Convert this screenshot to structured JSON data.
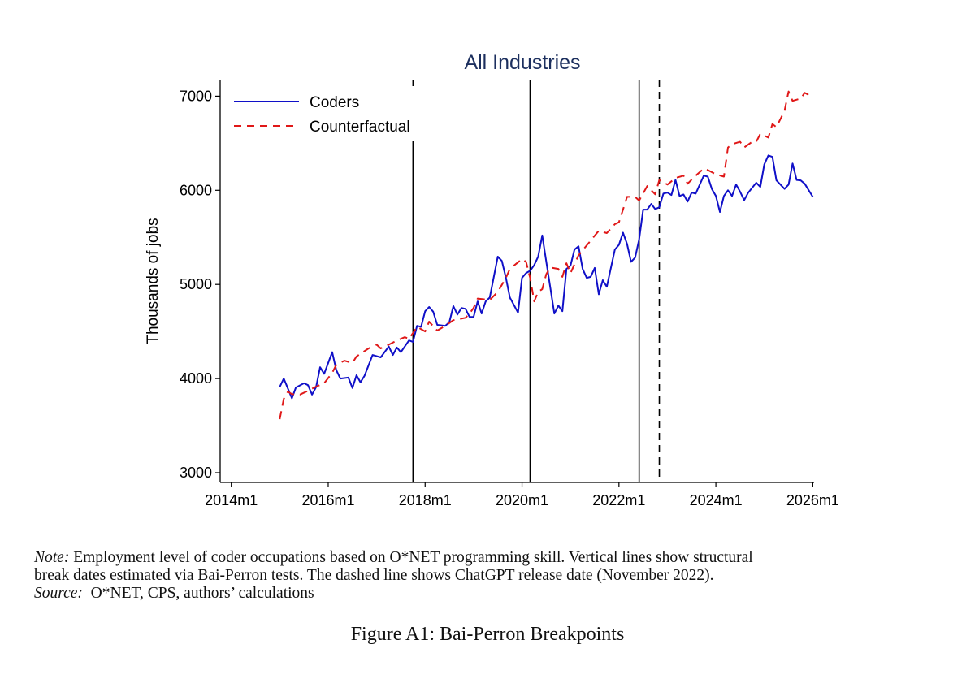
{
  "chart_data": {
    "type": "line",
    "title": "All Industries",
    "xlabel": "",
    "ylabel": "Thousands of jobs",
    "xlim": [
      "2014m1",
      "2026m1"
    ],
    "ylim": [
      3000,
      7000
    ],
    "x_ticks": [
      "2014m1",
      "2016m1",
      "2018m1",
      "2020m1",
      "2022m1",
      "2024m1",
      "2026m1"
    ],
    "y_ticks": [
      3000,
      4000,
      5000,
      6000,
      7000
    ],
    "grid": false,
    "legend_position": "top-left",
    "vertical_lines": [
      {
        "x": "2017m10",
        "style": "solid"
      },
      {
        "x": "2020m3",
        "style": "solid"
      },
      {
        "x": "2022m6",
        "style": "solid"
      },
      {
        "x": "2022m11",
        "style": "dashed"
      }
    ],
    "series": [
      {
        "name": "Coders",
        "color": "#1010c8",
        "style": "solid",
        "points": [
          [
            "2015m1",
            3910
          ],
          [
            "2015m2",
            4000
          ],
          [
            "2015m4",
            3790
          ],
          [
            "2015m5",
            3905
          ],
          [
            "2015m7",
            3950
          ],
          [
            "2015m8",
            3930
          ],
          [
            "2015m9",
            3830
          ],
          [
            "2015m10",
            3910
          ],
          [
            "2015m11",
            4120
          ],
          [
            "2015m12",
            4050
          ],
          [
            "2016m2",
            4280
          ],
          [
            "2016m3",
            4090
          ],
          [
            "2016m4",
            4000
          ],
          [
            "2016m6",
            4010
          ],
          [
            "2016m7",
            3900
          ],
          [
            "2016m8",
            4035
          ],
          [
            "2016m9",
            3960
          ],
          [
            "2016m10",
            4030
          ],
          [
            "2016m12",
            4250
          ],
          [
            "2017m2",
            4225
          ],
          [
            "2017m4",
            4340
          ],
          [
            "2017m5",
            4250
          ],
          [
            "2017m6",
            4330
          ],
          [
            "2017m7",
            4280
          ],
          [
            "2017m9",
            4405
          ],
          [
            "2017m10",
            4390
          ],
          [
            "2017m11",
            4560
          ],
          [
            "2017m12",
            4550
          ],
          [
            "2018m1",
            4715
          ],
          [
            "2018m2",
            4760
          ],
          [
            "2018m3",
            4710
          ],
          [
            "2018m4",
            4570
          ],
          [
            "2018m6",
            4560
          ],
          [
            "2018m7",
            4600
          ],
          [
            "2018m8",
            4770
          ],
          [
            "2018m9",
            4680
          ],
          [
            "2018m10",
            4750
          ],
          [
            "2018m11",
            4740
          ],
          [
            "2018m12",
            4655
          ],
          [
            "2019m1",
            4655
          ],
          [
            "2019m2",
            4820
          ],
          [
            "2019m3",
            4690
          ],
          [
            "2019m4",
            4820
          ],
          [
            "2019m5",
            4860
          ],
          [
            "2019m7",
            5295
          ],
          [
            "2019m8",
            5250
          ],
          [
            "2019m9",
            5070
          ],
          [
            "2019m10",
            4860
          ],
          [
            "2019m12",
            4700
          ],
          [
            "2020m1",
            5070
          ],
          [
            "2020m2",
            5120
          ],
          [
            "2020m3",
            5145
          ],
          [
            "2020m4",
            5205
          ],
          [
            "2020m5",
            5295
          ],
          [
            "2020m6",
            5520
          ],
          [
            "2020m7",
            5240
          ],
          [
            "2020m9",
            4690
          ],
          [
            "2020m10",
            4775
          ],
          [
            "2020m11",
            4715
          ],
          [
            "2020m12",
            5165
          ],
          [
            "2021m1",
            5200
          ],
          [
            "2021m2",
            5370
          ],
          [
            "2021m3",
            5405
          ],
          [
            "2021m4",
            5165
          ],
          [
            "2021m5",
            5070
          ],
          [
            "2021m6",
            5080
          ],
          [
            "2021m7",
            5175
          ],
          [
            "2021m8",
            4895
          ],
          [
            "2021m9",
            5045
          ],
          [
            "2021m10",
            4975
          ],
          [
            "2021m12",
            5370
          ],
          [
            "2022m1",
            5420
          ],
          [
            "2022m2",
            5550
          ],
          [
            "2022m3",
            5430
          ],
          [
            "2022m4",
            5240
          ],
          [
            "2022m5",
            5285
          ],
          [
            "2022m6",
            5480
          ],
          [
            "2022m7",
            5795
          ],
          [
            "2022m8",
            5795
          ],
          [
            "2022m9",
            5855
          ],
          [
            "2022m10",
            5800
          ],
          [
            "2022m11",
            5820
          ],
          [
            "2022m12",
            5965
          ],
          [
            "2023m1",
            5975
          ],
          [
            "2023m2",
            5950
          ],
          [
            "2023m3",
            6110
          ],
          [
            "2023m4",
            5940
          ],
          [
            "2023m5",
            5955
          ],
          [
            "2023m6",
            5880
          ],
          [
            "2023m7",
            5975
          ],
          [
            "2023m8",
            5965
          ],
          [
            "2023m10",
            6155
          ],
          [
            "2023m11",
            6145
          ],
          [
            "2023m12",
            6015
          ],
          [
            "2024m1",
            5940
          ],
          [
            "2024m2",
            5770
          ],
          [
            "2024m3",
            5940
          ],
          [
            "2024m4",
            6000
          ],
          [
            "2024m5",
            5940
          ],
          [
            "2024m6",
            6060
          ],
          [
            "2024m7",
            5985
          ],
          [
            "2024m8",
            5895
          ],
          [
            "2024m9",
            5975
          ],
          [
            "2024m11",
            6080
          ],
          [
            "2024m12",
            6035
          ],
          [
            "2025m1",
            6275
          ],
          [
            "2025m2",
            6370
          ],
          [
            "2025m3",
            6355
          ],
          [
            "2025m4",
            6105
          ],
          [
            "2025m6",
            6015
          ],
          [
            "2025m7",
            6060
          ],
          [
            "2025m8",
            6285
          ],
          [
            "2025m9",
            6110
          ],
          [
            "2025m10",
            6105
          ],
          [
            "2025m11",
            6070
          ],
          [
            "2026m1",
            5930
          ]
        ]
      },
      {
        "name": "Counterfactual",
        "color": "#e01818",
        "style": "dashed",
        "points": [
          [
            "2015m1",
            3569
          ],
          [
            "2015m2",
            3785
          ],
          [
            "2015m3",
            3860
          ],
          [
            "2015m4",
            3835
          ],
          [
            "2015m6",
            3830
          ],
          [
            "2015m8",
            3870
          ],
          [
            "2015m10",
            3915
          ],
          [
            "2015m12",
            3950
          ],
          [
            "2016m2",
            4060
          ],
          [
            "2016m3",
            4145
          ],
          [
            "2016m5",
            4190
          ],
          [
            "2016m7",
            4165
          ],
          [
            "2016m8",
            4235
          ],
          [
            "2016m11",
            4320
          ],
          [
            "2017m1",
            4360
          ],
          [
            "2017m2",
            4320
          ],
          [
            "2017m4",
            4360
          ],
          [
            "2017m6",
            4405
          ],
          [
            "2017m8",
            4440
          ],
          [
            "2017m9",
            4420
          ],
          [
            "2017m11",
            4550
          ],
          [
            "2018m1",
            4500
          ],
          [
            "2018m2",
            4605
          ],
          [
            "2018m4",
            4510
          ],
          [
            "2018m6",
            4560
          ],
          [
            "2018m8",
            4620
          ],
          [
            "2018m11",
            4645
          ],
          [
            "2018m12",
            4690
          ],
          [
            "2019m1",
            4750
          ],
          [
            "2019m2",
            4850
          ],
          [
            "2019m5",
            4835
          ],
          [
            "2019m7",
            4920
          ],
          [
            "2019m9",
            5070
          ],
          [
            "2019m10",
            5165
          ],
          [
            "2020m1",
            5270
          ],
          [
            "2020m2",
            5240
          ],
          [
            "2020m3",
            5070
          ],
          [
            "2020m4",
            4820
          ],
          [
            "2020m5",
            4920
          ],
          [
            "2020m6",
            4950
          ],
          [
            "2020m7",
            5110
          ],
          [
            "2020m8",
            5180
          ],
          [
            "2020m10",
            5165
          ],
          [
            "2020m11",
            5080
          ],
          [
            "2020m12",
            5225
          ],
          [
            "2021m1",
            5120
          ],
          [
            "2021m3",
            5310
          ],
          [
            "2021m6",
            5465
          ],
          [
            "2021m8",
            5570
          ],
          [
            "2021m10",
            5545
          ],
          [
            "2021m12",
            5640
          ],
          [
            "2022m1",
            5660
          ],
          [
            "2022m3",
            5930
          ],
          [
            "2022m5",
            5930
          ],
          [
            "2022m6",
            5890
          ],
          [
            "2022m8",
            6045
          ],
          [
            "2022m10",
            5957
          ],
          [
            "2022m11",
            6110
          ],
          [
            "2023m1",
            6060
          ],
          [
            "2023m3",
            6130
          ],
          [
            "2023m5",
            6155
          ],
          [
            "2023m6",
            6070
          ],
          [
            "2023m8",
            6155
          ],
          [
            "2023m10",
            6230
          ],
          [
            "2023m11",
            6215
          ],
          [
            "2024m1",
            6170
          ],
          [
            "2024m3",
            6145
          ],
          [
            "2024m4",
            6455
          ],
          [
            "2024m5",
            6490
          ],
          [
            "2024m7",
            6515
          ],
          [
            "2024m8",
            6455
          ],
          [
            "2024m10",
            6515
          ],
          [
            "2024m11",
            6515
          ],
          [
            "2024m12",
            6600
          ],
          [
            "2025m2",
            6560
          ],
          [
            "2025m3",
            6705
          ],
          [
            "2025m4",
            6670
          ],
          [
            "2025m6",
            6845
          ],
          [
            "2025m7",
            7050
          ],
          [
            "2025m8",
            6950
          ],
          [
            "2025m10",
            6975
          ],
          [
            "2025m11",
            7035
          ],
          [
            "2026m1",
            6990
          ]
        ]
      }
    ]
  },
  "note": {
    "label": "Note:",
    "line1": "Employment level of coder occupations based on O*NET programming skill. Vertical lines show structural",
    "line2": "break dates estimated via Bai-Perron tests. The dashed line shows ChatGPT release date (November 2022).",
    "source_label": "Source:",
    "source_text": "O*NET, CPS, authors’ calculations"
  },
  "caption": "Figure A1: Bai-Perron Breakpoints"
}
